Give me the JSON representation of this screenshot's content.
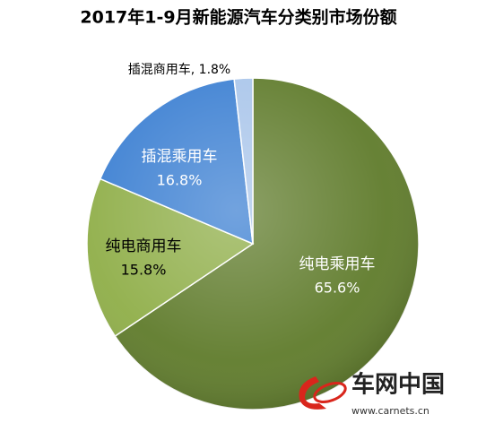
{
  "chart_data": {
    "type": "pie",
    "title": "2017年1-9月新能源汽车分类别市场份额",
    "categories": [
      "纯电乘用车",
      "纯电商用车",
      "插混乘用车",
      "插混商用车"
    ],
    "values": [
      65.6,
      15.8,
      16.8,
      1.8
    ],
    "value_labels": [
      "65.6%",
      "15.8%",
      "16.8%",
      "1.8%"
    ],
    "colors": [
      "#5f7b2b",
      "#8fae48",
      "#3b7fd2",
      "#a9c5ea"
    ],
    "watermark": {
      "brand": "车网中国",
      "url": "www.carnets.cn"
    }
  }
}
